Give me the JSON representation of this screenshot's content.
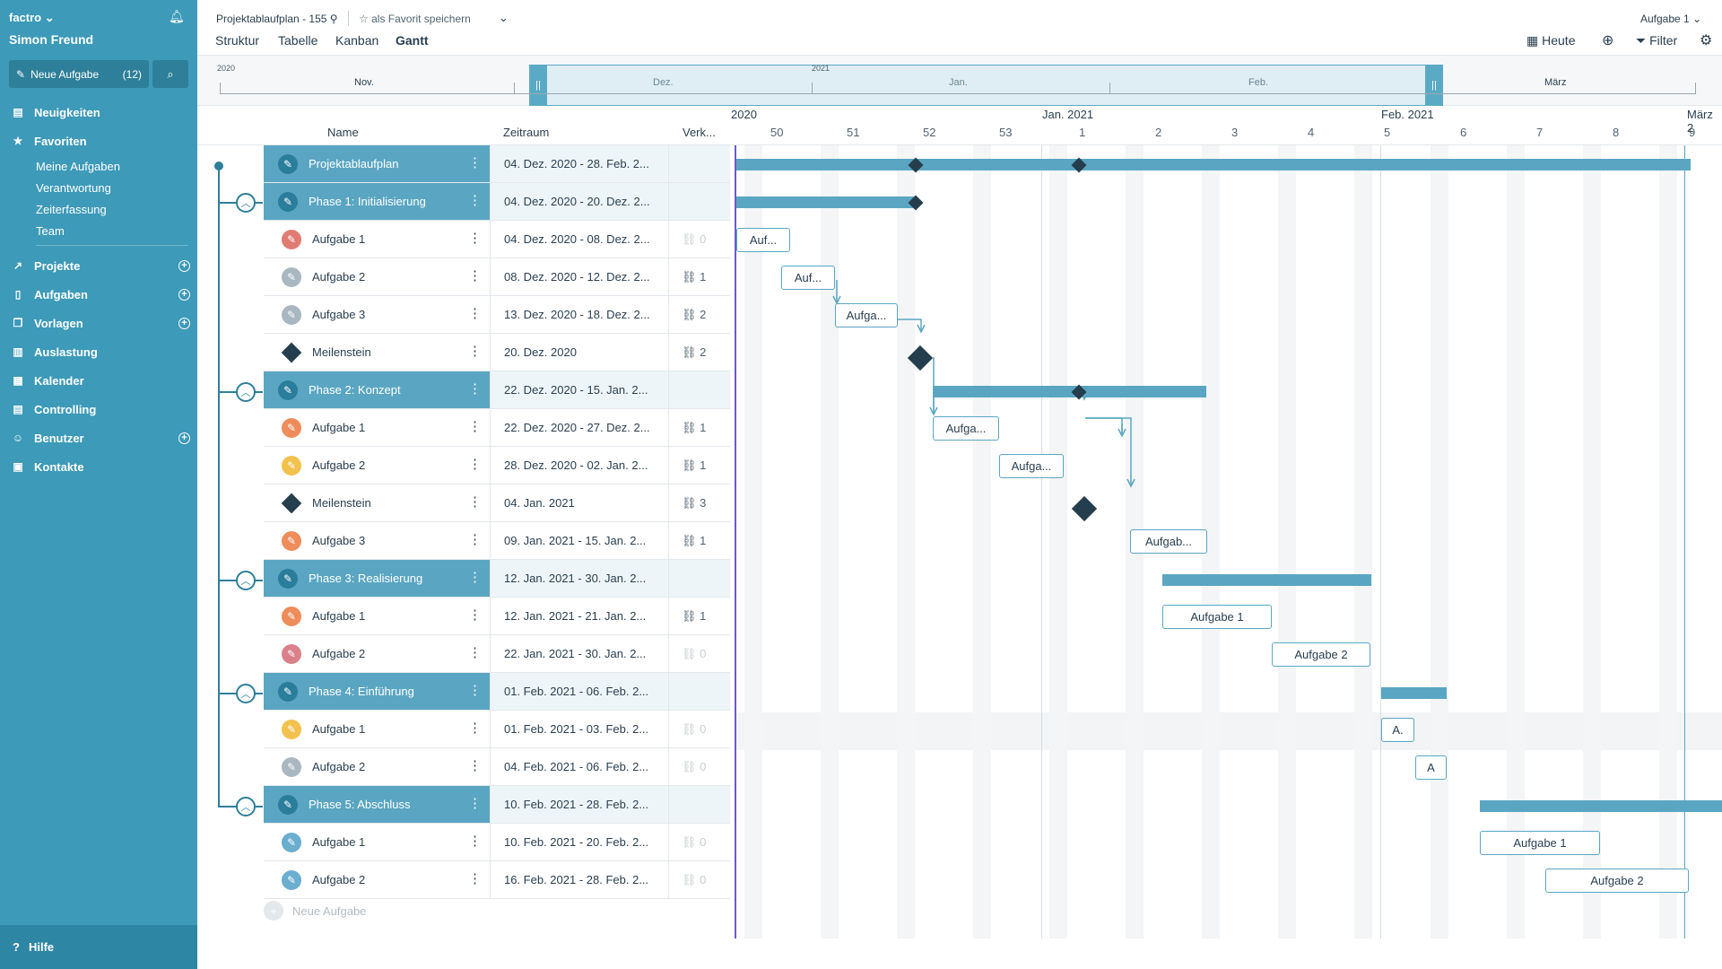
{
  "sidebar": {
    "brand": "factro",
    "user": "Simon Freund",
    "new_task_label": "Neue Aufgabe",
    "new_task_count": "(12)",
    "nav": [
      {
        "label": "Neuigkeiten"
      },
      {
        "label": "Favoriten"
      }
    ],
    "favorites": [
      "Meine Aufgaben",
      "Verantwortung",
      "Zeiterfassung",
      "Team"
    ],
    "nav2": [
      {
        "label": "Projekte"
      },
      {
        "label": "Aufgaben"
      },
      {
        "label": "Vorlagen"
      },
      {
        "label": "Auslastung"
      },
      {
        "label": "Kalender"
      },
      {
        "label": "Controlling"
      },
      {
        "label": "Benutzer"
      },
      {
        "label": "Kontakte"
      }
    ],
    "help": "Hilfe"
  },
  "header": {
    "title": "Projektablaufplan - 155",
    "favorite": "als Favorit speichern",
    "tabs": [
      "Struktur",
      "Tabelle",
      "Kanban",
      "Gantt"
    ],
    "task_selector": "Aufgabe 1",
    "today": "Heute",
    "filter": "Filter"
  },
  "overview": {
    "year_left": "2020",
    "year_mid": "2021",
    "months": [
      "Nov.",
      "Dez.",
      "Jan.",
      "Feb.",
      "März"
    ]
  },
  "columns": {
    "name": "Name",
    "range": "Zeitraum",
    "deps": "Verk..."
  },
  "timeline": {
    "years": [
      "2020",
      "Jan. 2021",
      "Feb. 2021",
      "März 2"
    ],
    "weeks": [
      "50",
      "51",
      "52",
      "53",
      "1",
      "2",
      "3",
      "4",
      "5",
      "6",
      "7",
      "8",
      "9"
    ]
  },
  "rows": [
    {
      "type": "phase",
      "name": "Projektablaufplan",
      "range": "04. Dez. 2020 - 28. Feb. 2...",
      "deps": ""
    },
    {
      "type": "phase",
      "name": "Phase 1: Initialisierung",
      "range": "04. Dez. 2020 - 20. Dez. 2...",
      "deps": ""
    },
    {
      "type": "task",
      "name": "Aufgabe 1",
      "range": "04. Dez. 2020 - 08. Dez. 2...",
      "deps": "0",
      "color": "#e07b73"
    },
    {
      "type": "task",
      "name": "Aufgabe 2",
      "range": "08. Dez. 2020 - 12. Dez. 2...",
      "deps": "1",
      "color": "#a9b7c0"
    },
    {
      "type": "task",
      "name": "Aufgabe 3",
      "range": "13. Dez. 2020 - 18. Dez. 2...",
      "deps": "2",
      "color": "#a9b7c0"
    },
    {
      "type": "milestone",
      "name": "Meilenstein",
      "range": "20. Dez. 2020",
      "deps": "2"
    },
    {
      "type": "phase",
      "name": "Phase 2: Konzept",
      "range": "22. Dez. 2020 - 15. Jan. 2...",
      "deps": ""
    },
    {
      "type": "task",
      "name": "Aufgabe 1",
      "range": "22. Dez. 2020 - 27. Dez. 2...",
      "deps": "1",
      "color": "#ee8c5a"
    },
    {
      "type": "task",
      "name": "Aufgabe 2",
      "range": "28. Dez. 2020 - 02. Jan. 2...",
      "deps": "1",
      "color": "#f2c14e"
    },
    {
      "type": "milestone",
      "name": "Meilenstein",
      "range": "04. Jan. 2021",
      "deps": "3"
    },
    {
      "type": "task",
      "name": "Aufgabe 3",
      "range": "09. Jan. 2021 - 15. Jan. 2...",
      "deps": "1",
      "color": "#ee8c5a"
    },
    {
      "type": "phase",
      "name": "Phase 3: Realisierung",
      "range": "12. Jan. 2021 - 30. Jan. 2...",
      "deps": ""
    },
    {
      "type": "task",
      "name": "Aufgabe 1",
      "range": "12. Jan. 2021 - 21. Jan. 2...",
      "deps": "1",
      "color": "#ee8c5a"
    },
    {
      "type": "task",
      "name": "Aufgabe 2",
      "range": "22. Jan. 2021 - 30. Jan. 2...",
      "deps": "0",
      "color": "#d9808a"
    },
    {
      "type": "phase",
      "name": "Phase 4: Einführung",
      "range": "01. Feb. 2021 - 06. Feb. 2...",
      "deps": ""
    },
    {
      "type": "task",
      "name": "Aufgabe 1",
      "range": "01. Feb. 2021 - 03. Feb. 2...",
      "deps": "0",
      "color": "#f2c14e"
    },
    {
      "type": "task",
      "name": "Aufgabe 2",
      "range": "04. Feb. 2021 - 06. Feb. 2...",
      "deps": "0",
      "color": "#a9b7c0"
    },
    {
      "type": "phase",
      "name": "Phase 5: Abschluss",
      "range": "10. Feb. 2021 - 28. Feb. 2...",
      "deps": ""
    },
    {
      "type": "task",
      "name": "Aufgabe 1",
      "range": "10. Feb. 2021 - 20. Feb. 2...",
      "deps": "0",
      "color": "#6aaed0"
    },
    {
      "type": "task",
      "name": "Aufgabe 2",
      "range": "16. Feb. 2021 - 28. Feb. 2...",
      "deps": "0",
      "color": "#6aaed0"
    }
  ],
  "new_task_row": "Neue Aufgabe",
  "gantt_labels": [
    "Auf...",
    "Auf...",
    "Aufga...",
    "Aufga...",
    "Aufga...",
    "Aufgab...",
    "Aufgabe 1",
    "Aufgabe 2",
    "A.",
    "A",
    "Aufgabe 1",
    "Aufgabe 2"
  ],
  "colors": {
    "sidebar": "#3d9ab8",
    "accent": "#5aa6c2",
    "milestone": "#253e4d"
  }
}
